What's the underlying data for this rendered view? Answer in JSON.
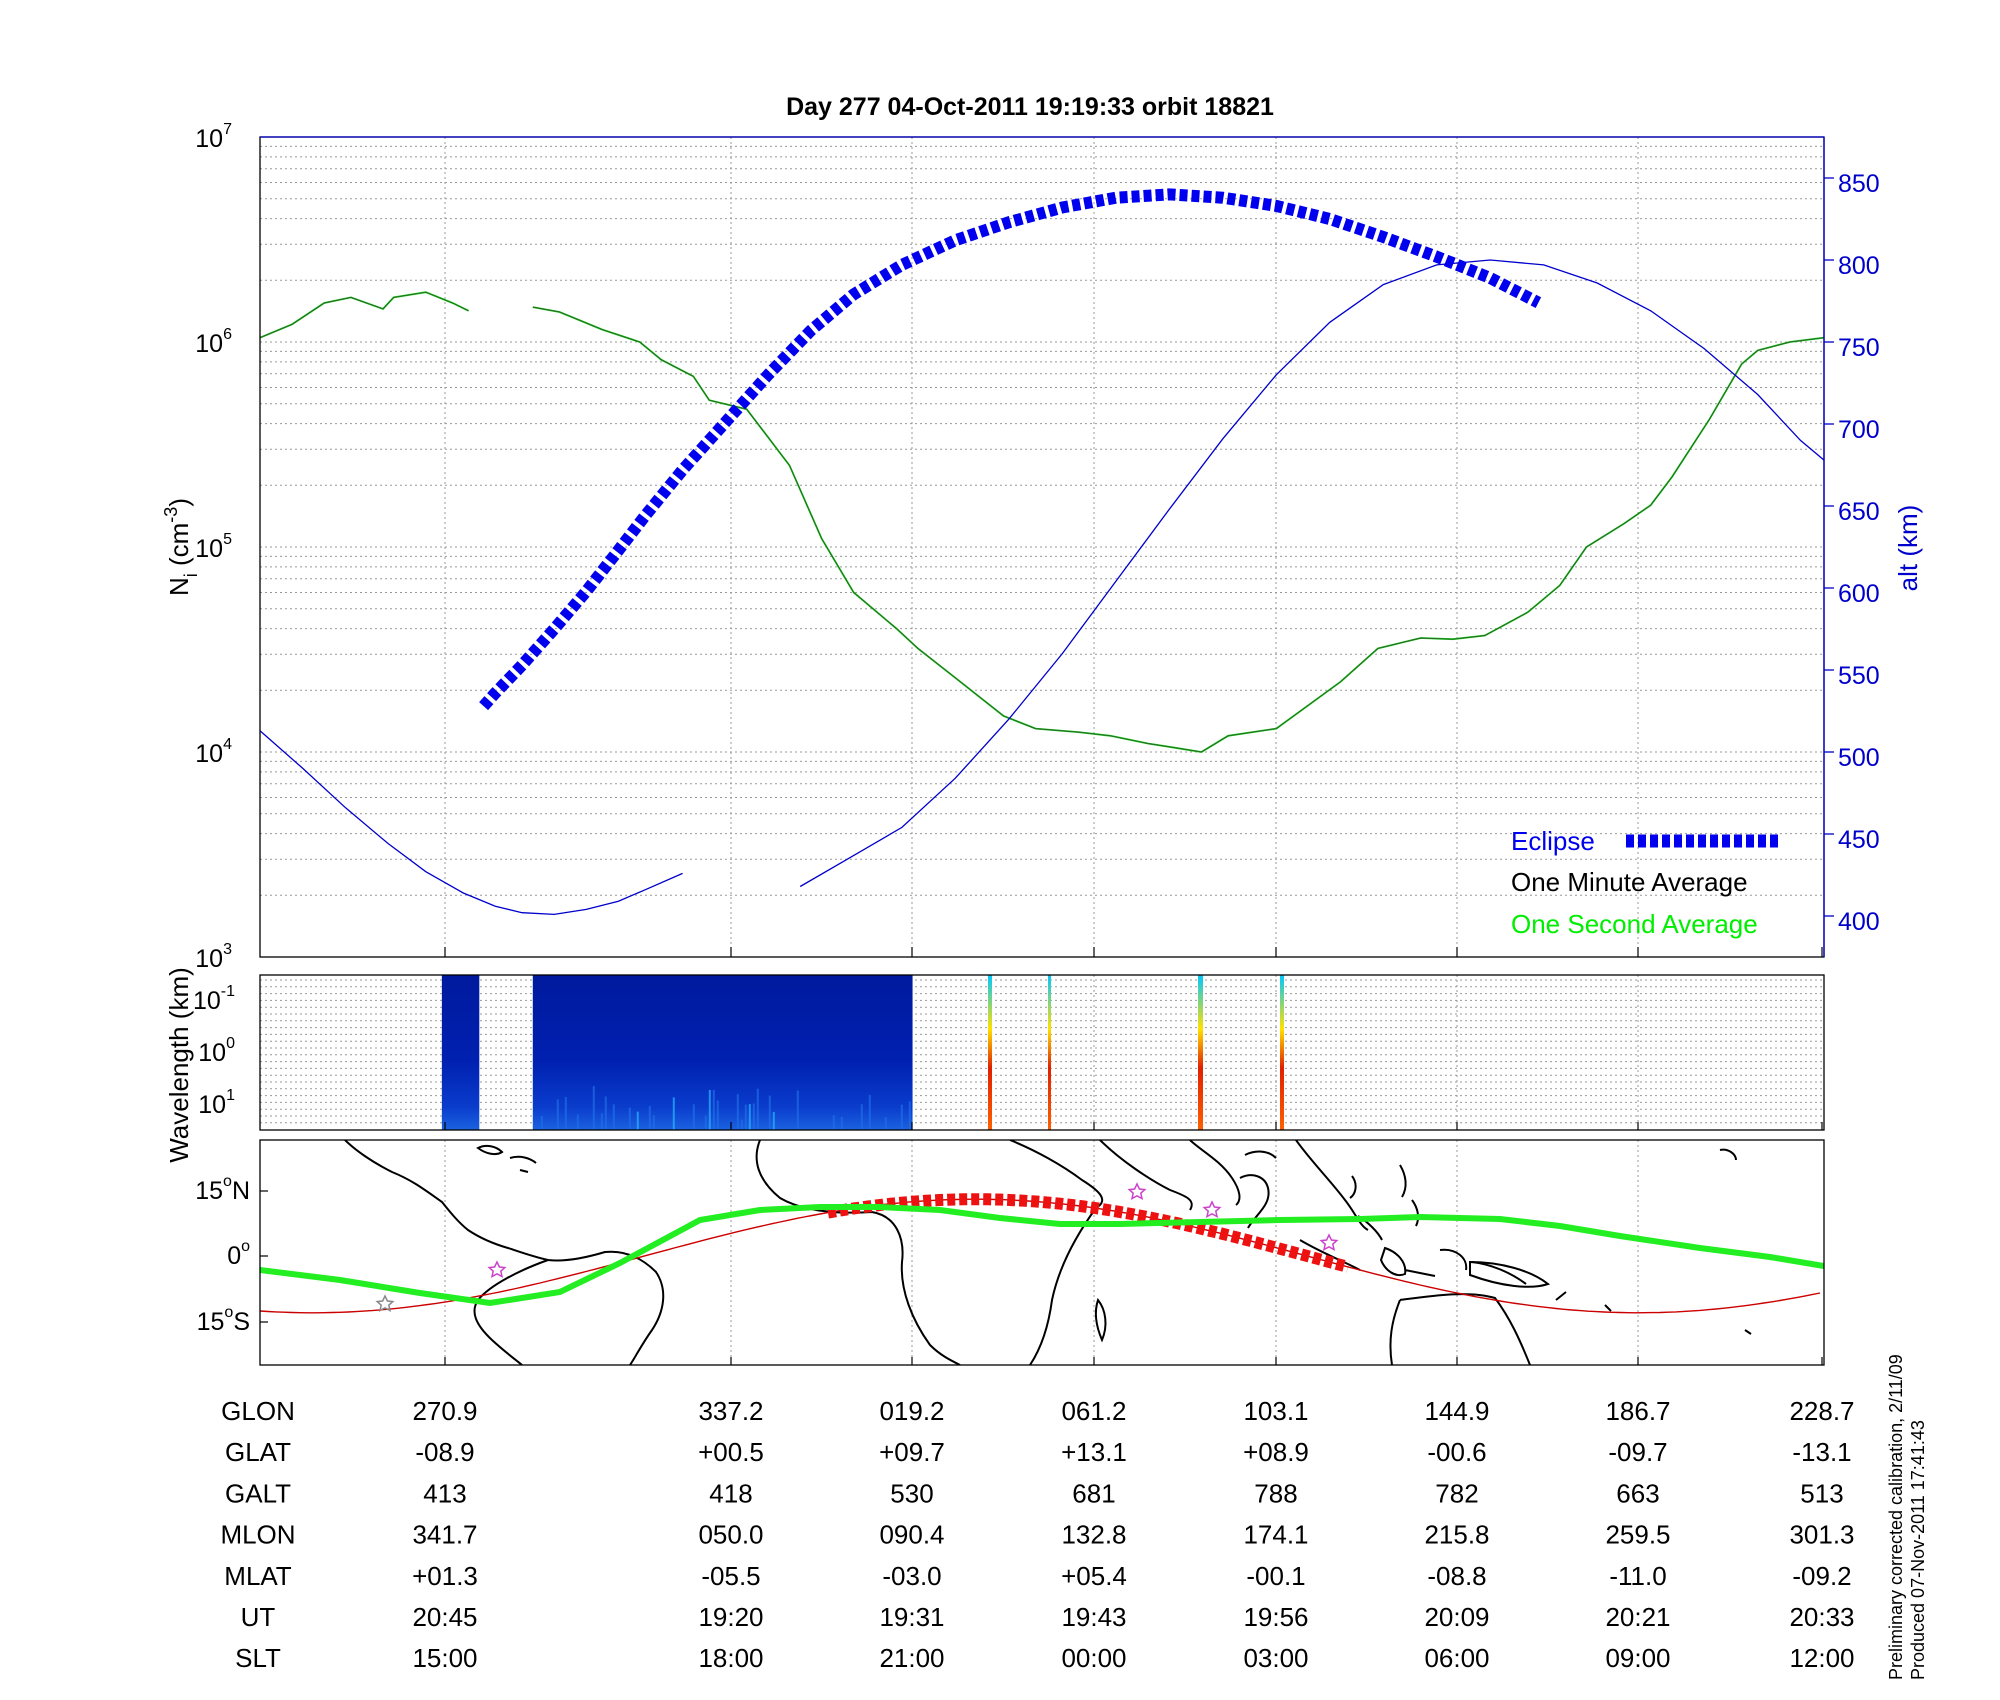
{
  "title": "Day 277  04-Oct-2011 19:19:33   orbit 18821",
  "top_panel": {
    "ylabel_base": "N",
    "ylabel_sub": "i",
    "ylabel_unit_pre": " (cm",
    "ylabel_unit_sup": "-3",
    "ylabel_unit_post": ")",
    "y_ticks": [
      {
        "base": "10",
        "exp": "3"
      },
      {
        "base": "10",
        "exp": "4"
      },
      {
        "base": "10",
        "exp": "5"
      },
      {
        "base": "10",
        "exp": "6"
      },
      {
        "base": "10",
        "exp": "7"
      }
    ],
    "y2label": "alt (km)",
    "y2_ticks": [
      "400",
      "450",
      "500",
      "550",
      "600",
      "650",
      "700",
      "750",
      "800",
      "850"
    ],
    "legend": {
      "eclipse": "Eclipse",
      "minute": "One Minute Average",
      "second": "One Second Average"
    }
  },
  "spec_panel": {
    "ylabel": "Wavelength (km)",
    "y_ticks": [
      {
        "base": "10",
        "exp": "-1"
      },
      {
        "base": "10",
        "exp": "0"
      },
      {
        "base": "10",
        "exp": "1"
      }
    ]
  },
  "map_panel": {
    "y_ticks": [
      {
        "value": "15",
        "deg": "o",
        "hem": "N"
      },
      {
        "value": "0",
        "deg": "o",
        "hem": ""
      },
      {
        "value": "15",
        "deg": "o",
        "hem": "S"
      }
    ]
  },
  "table": {
    "labels": [
      "GLON",
      "GLAT",
      "GALT",
      "MLON",
      "MLAT",
      "UT",
      "SLT"
    ],
    "columns": [
      [
        "270.9",
        "-08.9",
        "413",
        "341.7",
        "+01.3",
        "20:45",
        "15:00"
      ],
      [
        "337.2",
        "+00.5",
        "418",
        "050.0",
        "-05.5",
        "19:20",
        "18:00"
      ],
      [
        "019.2",
        "+09.7",
        "530",
        "090.4",
        "-03.0",
        "19:31",
        "21:00"
      ],
      [
        "061.2",
        "+13.1",
        "681",
        "132.8",
        "+05.4",
        "19:43",
        "00:00"
      ],
      [
        "103.1",
        "+08.9",
        "788",
        "174.1",
        "-00.1",
        "19:56",
        "03:00"
      ],
      [
        "144.9",
        "-00.6",
        "782",
        "215.8",
        "-08.8",
        "20:09",
        "06:00"
      ],
      [
        "186.7",
        "-09.7",
        "663",
        "259.5",
        "-11.0",
        "20:21",
        "09:00"
      ],
      [
        "228.7",
        "-13.1",
        "513",
        "301.3",
        "-09.2",
        "20:33",
        "12:00"
      ]
    ]
  },
  "footnote": {
    "line1": "Preliminary corrected calibration, 2/11/09",
    "line2": "Produced 07-Nov-2011 17:41:43"
  },
  "colors": {
    "altitude": "#0000cc",
    "eclipse": "#0000ee",
    "minute_avg": "#000000",
    "second_avg": "#00ee00",
    "density": "#2e6b2e",
    "track": "#cc0000",
    "ground_track": "#22ee22",
    "star": "#cc44cc"
  },
  "chart_data": [
    {
      "type": "line",
      "name": "ion density and altitude",
      "x_ticks": [
        "270.9",
        "337.2",
        "019.2",
        "061.2",
        "103.1",
        "144.9",
        "186.7",
        "228.7"
      ],
      "y_scale": "log",
      "ylim": [
        1000,
        10000000
      ],
      "y2lim": [
        375,
        875
      ],
      "grid": true,
      "legend_position": "bottom-right",
      "series": [
        {
          "name": "One Minute Average",
          "axis": "left",
          "segments": [
            {
              "x": [
                0,
                0.3,
                0.6,
                0.85,
                1.15,
                1.25,
                1.55,
                1.8,
                1.95
              ],
              "y": [
                1050000,
                1220000,
                1550000,
                1650000,
                1450000,
                1650000,
                1750000,
                1550000,
                1420000
              ]
            },
            {
              "x": [
                2.55,
                2.8,
                3.2,
                3.55,
                3.75,
                4.05,
                4.2,
                4.55,
                4.95,
                5.25,
                5.55,
                5.95,
                6.15,
                6.5,
                6.95,
                7.25,
                7.65,
                7.95,
                8.3,
                8.55,
                8.8,
                9.05,
                9.5,
                10.1,
                10.45,
                10.85,
                11.15,
                11.45,
                11.85,
                12.15,
                12.4,
                12.75,
                13.0,
                13.2,
                13.55,
                13.85,
                14.0,
                14.3,
                14.62
              ],
              "y": [
                1480000,
                1400000,
                1150000,
                1000000,
                820000,
                680000,
                520000,
                470000,
                250000,
                110000,
                60000,
                40000,
                32000,
                23000,
                15000,
                13000,
                12500,
                12000,
                11000,
                10500,
                10000,
                12000,
                13000,
                22000,
                32000,
                36000,
                35500,
                37000,
                48000,
                65000,
                100000,
                130000,
                160000,
                220000,
                420000,
                780000,
                910000,
                1000000,
                1050000
              ]
            }
          ]
        },
        {
          "name": "altitude",
          "axis": "right",
          "segments": [
            {
              "x": [
                0,
                0.4,
                0.8,
                1.2,
                1.55,
                1.9,
                2.2,
                2.45,
                2.75,
                3.05,
                3.35,
                3.6,
                3.95
              ],
              "y": [
                513,
                490,
                466,
                444,
                427,
                414,
                406,
                402,
                401,
                404,
                409,
                416,
                426
              ]
            },
            {
              "x": [
                5.05,
                5.5,
                6.0,
                6.5,
                7.0,
                7.5,
                8.0,
                8.5,
                9.0,
                9.5,
                10.0,
                10.5,
                11.0,
                11.5,
                12.0,
                12.5,
                13.0,
                13.5,
                14.0,
                14.4,
                14.62
              ],
              "y": [
                418,
                435,
                454,
                484,
                520,
                560,
                604,
                648,
                691,
                730,
                762,
                785,
                797,
                800,
                797,
                786,
                769,
                746,
                718,
                690,
                678
              ]
            }
          ]
        },
        {
          "name": "Eclipse",
          "axis": "right",
          "segments": [
            {
              "x": [
                2.09,
                2.2,
                2.45,
                2.75,
                3.05,
                3.35,
                3.6,
                3.95,
                4.35,
                4.75,
                5.15,
                5.55,
                6.0,
                6.5,
                7.0,
                7.5,
                8.0,
                8.5,
                9.0,
                9.5,
                10.0,
                10.5,
                11.0,
                11.5,
                11.95
              ],
              "y": [
                528,
                536,
                553,
                575,
                598,
                623,
                644,
                672,
                701,
                730,
                757,
                779,
                797,
                812,
                823,
                832,
                838,
                840,
                838,
                833,
                825,
                814,
                802,
                789,
                774
              ]
            }
          ]
        }
      ]
    },
    {
      "type": "heatmap",
      "name": "wavelength spectrum",
      "ylim_log10": [
        -1,
        1
      ],
      "data_intervals": [
        [
          1.7,
          2.05
        ],
        [
          2.55,
          6.1
        ]
      ]
    }
  ]
}
